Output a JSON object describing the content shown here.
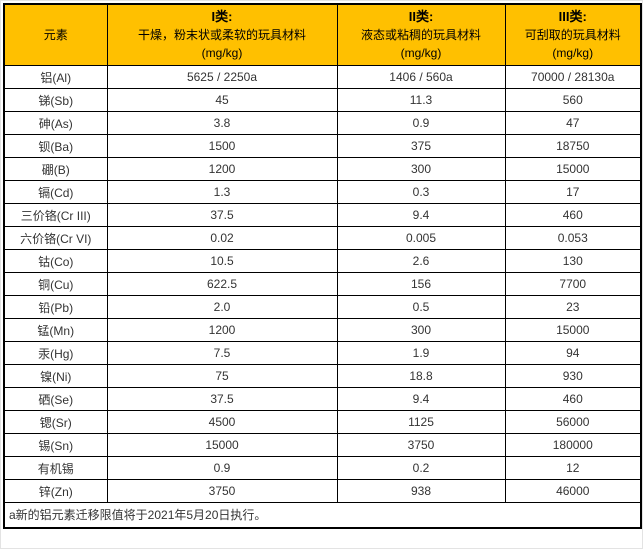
{
  "colors": {
    "header_bg": "#FFC000",
    "border": "#000000",
    "text": "#333333"
  },
  "header": {
    "element_col": "元素",
    "class_cols": [
      {
        "title": "I类:",
        "desc": "干燥，粉末状或柔软的玩具材料",
        "unit": "(mg/kg)"
      },
      {
        "title": "II类:",
        "desc": "液态或粘稠的玩具材料",
        "unit": "(mg/kg)"
      },
      {
        "title": "III类:",
        "desc": "可刮取的玩具材料",
        "unit": "(mg/kg)"
      }
    ]
  },
  "rows": [
    {
      "element": "铝(Al)",
      "c1": "5625 / 2250a",
      "c2": "1406 / 560a",
      "c3": "70000 / 28130a"
    },
    {
      "element": "锑(Sb)",
      "c1": "45",
      "c2": "11.3",
      "c3": "560"
    },
    {
      "element": "砷(As)",
      "c1": "3.8",
      "c2": "0.9",
      "c3": "47"
    },
    {
      "element": "钡(Ba)",
      "c1": "1500",
      "c2": "375",
      "c3": "18750"
    },
    {
      "element": "硼(B)",
      "c1": "1200",
      "c2": "300",
      "c3": "15000"
    },
    {
      "element": "镉(Cd)",
      "c1": "1.3",
      "c2": "0.3",
      "c3": "17"
    },
    {
      "element": "三价铬(Cr III)",
      "c1": "37.5",
      "c2": "9.4",
      "c3": "460"
    },
    {
      "element": "六价铬(Cr VI)",
      "c1": "0.02",
      "c2": "0.005",
      "c3": "0.053"
    },
    {
      "element": "钴(Co)",
      "c1": "10.5",
      "c2": "2.6",
      "c3": "130"
    },
    {
      "element": "铜(Cu)",
      "c1": "622.5",
      "c2": "156",
      "c3": "7700"
    },
    {
      "element": "铅(Pb)",
      "c1": "2.0",
      "c2": "0.5",
      "c3": "23"
    },
    {
      "element": "锰(Mn)",
      "c1": "1200",
      "c2": "300",
      "c3": "15000"
    },
    {
      "element": "汞(Hg)",
      "c1": "7.5",
      "c2": "1.9",
      "c3": "94"
    },
    {
      "element": "镍(Ni)",
      "c1": "75",
      "c2": "18.8",
      "c3": "930"
    },
    {
      "element": "硒(Se)",
      "c1": "37.5",
      "c2": "9.4",
      "c3": "460"
    },
    {
      "element": "锶(Sr)",
      "c1": "4500",
      "c2": "1125",
      "c3": "56000"
    },
    {
      "element": "锡(Sn)",
      "c1": "15000",
      "c2": "3750",
      "c3": "180000"
    },
    {
      "element": "有机锡",
      "c1": "0.9",
      "c2": "0.2",
      "c3": "12"
    },
    {
      "element": "锌(Zn)",
      "c1": "3750",
      "c2": "938",
      "c3": "46000"
    }
  ],
  "footnote": "a新的铝元素迁移限值将于2021年5月20日执行。"
}
